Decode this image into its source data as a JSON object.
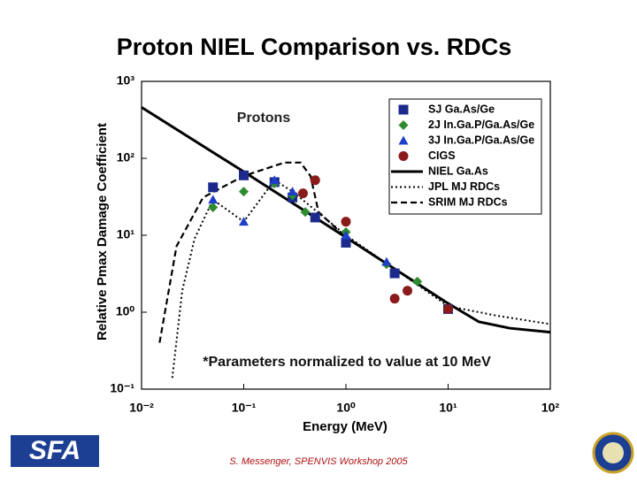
{
  "title": "Proton NIEL Comparison vs. RDCs",
  "footer": "S. Messenger, SPENVIS Workshop 2005",
  "logo_text": "SFA",
  "chart_data": {
    "type": "scatter",
    "x_label": "Energy (MeV)",
    "y_label": "Relative Pmax Damage Coefficient",
    "annotation": "Protons",
    "note": "*Parameters normalized to value at 10 MeV",
    "log_x": true,
    "log_y": true,
    "xlim": [
      0.01,
      100
    ],
    "ylim": [
      0.1,
      1000
    ],
    "xticks": [
      {
        "value": 0.01,
        "label": "10⁻²"
      },
      {
        "value": 0.1,
        "label": "10⁻¹"
      },
      {
        "value": 1,
        "label": "10⁰"
      },
      {
        "value": 10,
        "label": "10¹"
      },
      {
        "value": 100,
        "label": "10²"
      }
    ],
    "yticks": [
      {
        "value": 0.1,
        "label": "10⁻¹"
      },
      {
        "value": 1,
        "label": "10⁰"
      },
      {
        "value": 10,
        "label": "10¹"
      },
      {
        "value": 100,
        "label": "10²"
      },
      {
        "value": 1000,
        "label": "10³"
      }
    ],
    "legend": "upper right",
    "series": [
      {
        "name": "SJ Ga.As/Ge",
        "marker": "square",
        "color": "#1c2a8c",
        "x": [
          0.05,
          0.1,
          0.2,
          0.3,
          0.5,
          1,
          3,
          10
        ],
        "values": [
          42,
          60,
          49,
          31,
          17,
          8,
          3.2,
          1.1
        ]
      },
      {
        "name": "2J In.Ga.P/Ga.As/Ge",
        "marker": "diamond",
        "color": "#2e8b2e",
        "x": [
          0.05,
          0.1,
          0.2,
          0.3,
          0.4,
          1,
          2.5,
          5,
          10
        ],
        "values": [
          23,
          37,
          47,
          33,
          20,
          11,
          4.2,
          2.5,
          1.1
        ]
      },
      {
        "name": "3J In.Ga.P/Ga.As/Ge",
        "marker": "triangle",
        "color": "#1f3fc8",
        "x": [
          0.05,
          0.1,
          0.2,
          0.3,
          1,
          2.5
        ],
        "values": [
          29,
          15,
          52,
          37,
          10,
          4.5
        ]
      },
      {
        "name": "CIGS",
        "marker": "circle",
        "color": "#8b1a1a",
        "x": [
          0.38,
          0.5,
          1,
          3,
          4,
          10
        ],
        "values": [
          35,
          52,
          15,
          1.5,
          1.9,
          1.1
        ]
      },
      {
        "name": "NIEL Ga.As",
        "line": "solid",
        "color": "#000000",
        "x": [
          0.01,
          0.1,
          1,
          10,
          20,
          40,
          100
        ],
        "values": [
          460,
          67,
          9.4,
          1.3,
          0.75,
          0.62,
          0.55
        ]
      },
      {
        "name": "JPL MJ RDCs",
        "line": "dotted",
        "color": "#000000",
        "x": [
          0.02,
          0.025,
          0.033,
          0.05,
          0.1,
          0.2,
          0.3,
          1,
          10,
          30,
          100
        ],
        "values": [
          0.14,
          1.9,
          9,
          29,
          15,
          52,
          37,
          10,
          1.2,
          0.9,
          0.7
        ]
      },
      {
        "name": "SRIM MJ RDCs",
        "line": "dashed",
        "color": "#000000",
        "x": [
          0.015,
          0.022,
          0.04,
          0.1,
          0.25,
          0.36,
          0.45,
          0.54,
          1,
          10
        ],
        "values": [
          0.4,
          7.2,
          31,
          59,
          88,
          88,
          59,
          20,
          9.4,
          1.3
        ]
      }
    ]
  }
}
